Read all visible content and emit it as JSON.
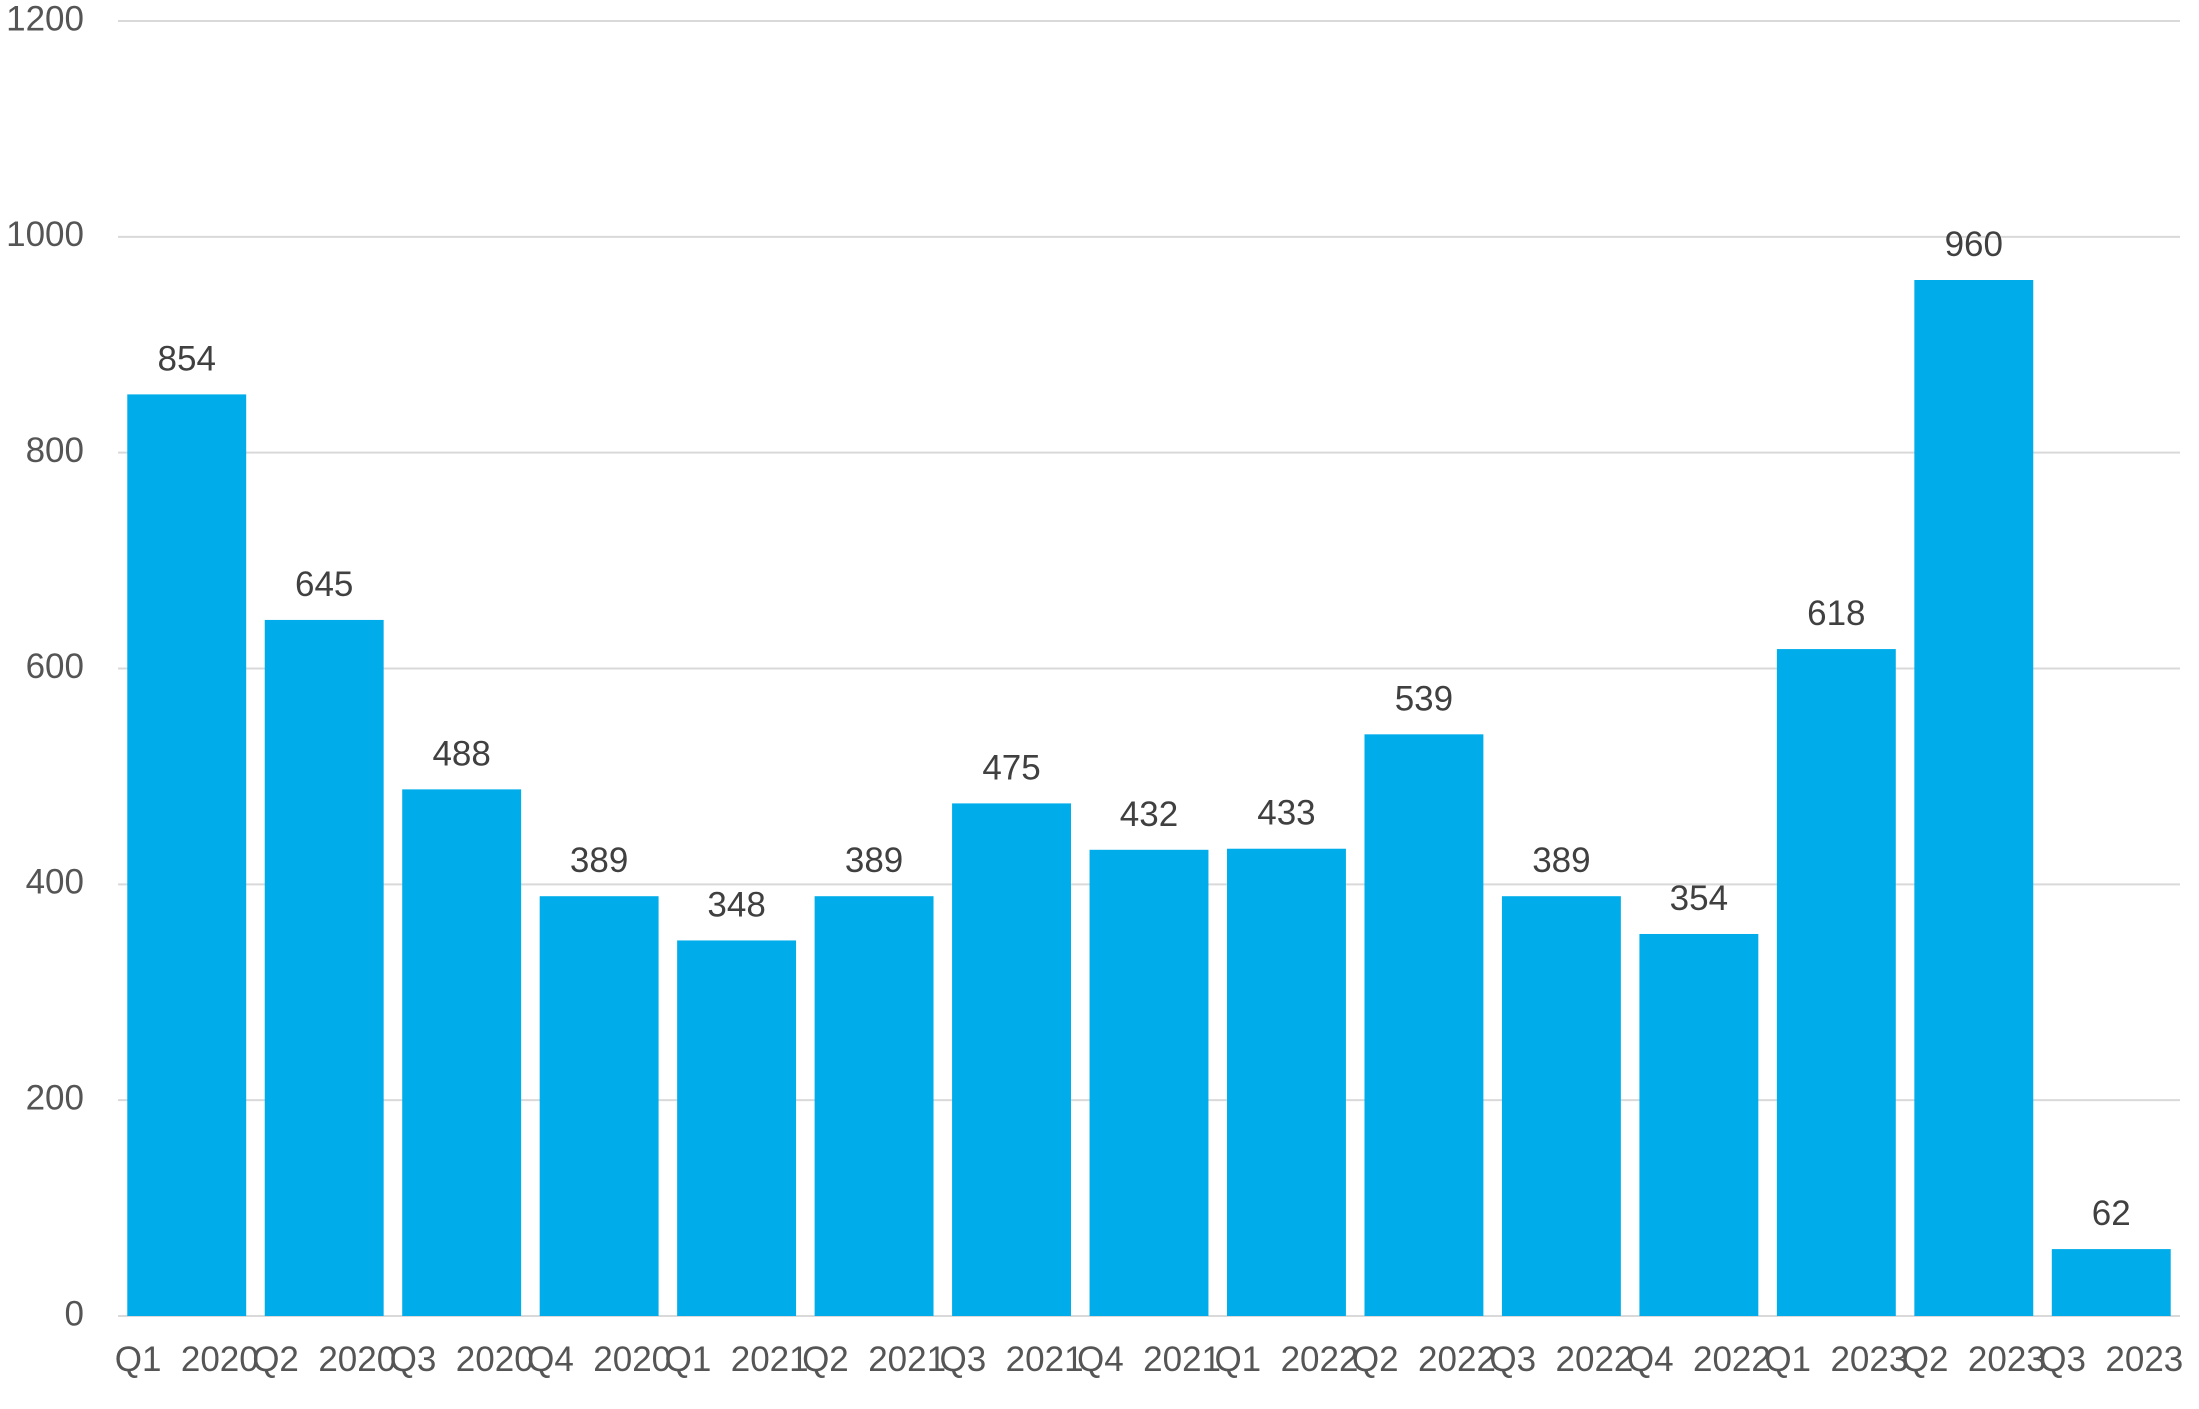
{
  "chart_data": {
    "type": "bar",
    "categories": [
      "Q1  2020",
      "Q2  2020",
      "Q3  2020",
      "Q4  2020",
      "Q1  2021",
      "Q2  2021",
      "Q3  2021",
      "Q4  2021",
      "Q1  2022",
      "Q2  2022",
      "Q3  2022",
      "Q4  2022",
      "Q1  2023",
      "Q2  2023",
      "Q3  2023"
    ],
    "values": [
      854,
      645,
      488,
      389,
      348,
      389,
      475,
      432,
      433,
      539,
      389,
      354,
      618,
      960,
      62
    ],
    "title": "",
    "xlabel": "",
    "ylabel": "",
    "ylim": [
      0,
      1200
    ],
    "yticks": [
      0,
      200,
      400,
      600,
      800,
      1000,
      1200
    ],
    "grid": true,
    "data_labels": true,
    "bar_color": "#00adea",
    "grid_color": "#d9d9d9",
    "label_color": "#555555"
  }
}
